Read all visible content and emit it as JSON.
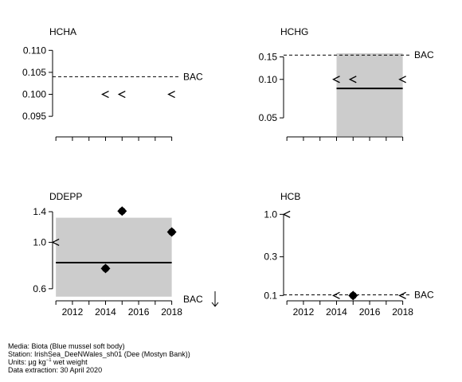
{
  "chart_data": [
    {
      "type": "scatter",
      "title": "HCHA",
      "scale": "linear",
      "ylim": [
        0.0905,
        0.1115
      ],
      "yticks": [
        0.095,
        0.1,
        0.105,
        0.11
      ],
      "ytick_labels": [
        "0.095",
        "0.100",
        "0.105",
        "0.110"
      ],
      "xlim": [
        2010.8,
        2018.5
      ],
      "xticks": [
        2011,
        2012,
        2013,
        2014,
        2015,
        2016,
        2017,
        2018
      ],
      "xtick_labels": [],
      "bac": {
        "value": 0.104,
        "label": "BAC"
      },
      "band": null,
      "trend": null,
      "points": [
        {
          "x": 2014,
          "y": 0.1,
          "marker": "less-than"
        },
        {
          "x": 2015,
          "y": 0.1,
          "marker": "less-than"
        },
        {
          "x": 2018,
          "y": 0.1,
          "marker": "less-than"
        }
      ]
    },
    {
      "type": "scatter",
      "title": "HCHG",
      "scale": "log",
      "ylim": [
        0.036,
        0.19
      ],
      "yticks": [
        0.05,
        0.1,
        0.15
      ],
      "ytick_labels": [
        "0.05",
        "0.10",
        "0.15"
      ],
      "xlim": [
        2010.8,
        2018.5
      ],
      "xticks": [
        2011,
        2012,
        2013,
        2014,
        2015,
        2016,
        2017,
        2018
      ],
      "xtick_labels": [],
      "bac": {
        "value": 0.155,
        "label": "BAC"
      },
      "band": {
        "x": [
          2014,
          2018
        ],
        "y": [
          0.035,
          0.16
        ]
      },
      "trend": {
        "x": [
          2014,
          2018
        ],
        "y": [
          0.085,
          0.085
        ]
      },
      "points": [
        {
          "x": 2014,
          "y": 0.1,
          "marker": "less-than"
        },
        {
          "x": 2015,
          "y": 0.1,
          "marker": "less-than"
        },
        {
          "x": 2018,
          "y": 0.1,
          "marker": "less-than"
        }
      ]
    },
    {
      "type": "scatter",
      "title": "DDEPP",
      "scale": "log",
      "ylim": [
        0.53,
        1.45
      ],
      "yticks": [
        0.6,
        1.0,
        1.4
      ],
      "ytick_labels": [
        "0.6",
        "1.0",
        "1.4"
      ],
      "xlim": [
        2010.8,
        2018.5
      ],
      "xticks": [
        2011,
        2012,
        2013,
        2014,
        2015,
        2016,
        2017,
        2018
      ],
      "xtick_labels": [
        "2012",
        "2014",
        "2016",
        "2018"
      ],
      "bac": {
        "value": null,
        "label": "BAC",
        "off_scale": "below"
      },
      "band": {
        "x": [
          2011,
          2018
        ],
        "y": [
          0.55,
          1.31
        ]
      },
      "trend": {
        "x": [
          2011,
          2018
        ],
        "y": [
          0.8,
          0.8
        ]
      },
      "points": [
        {
          "x": 2011,
          "y": 1.0,
          "marker": "less-than"
        },
        {
          "x": 2014,
          "y": 0.75,
          "marker": "filled-diamond"
        },
        {
          "x": 2015,
          "y": 1.41,
          "marker": "filled-diamond"
        },
        {
          "x": 2018,
          "y": 1.12,
          "marker": "filled-diamond"
        }
      ]
    },
    {
      "type": "scatter",
      "title": "HCB",
      "scale": "log",
      "ylim": [
        0.088,
        1.18
      ],
      "yticks": [
        0.1,
        0.3,
        1.0
      ],
      "ytick_labels": [
        "0.1",
        "0.3",
        "1.0"
      ],
      "xlim": [
        2010.8,
        2018.5
      ],
      "xticks": [
        2011,
        2012,
        2013,
        2014,
        2015,
        2016,
        2017,
        2018
      ],
      "xtick_labels": [
        "2012",
        "2014",
        "2016",
        "2018"
      ],
      "bac": {
        "value": 0.102,
        "label": "BAC"
      },
      "band": null,
      "trend": null,
      "points": [
        {
          "x": 2011,
          "y": 1.0,
          "marker": "less-than"
        },
        {
          "x": 2014,
          "y": 0.1,
          "marker": "less-than"
        },
        {
          "x": 2015,
          "y": 0.1,
          "marker": "filled-diamond"
        },
        {
          "x": 2018,
          "y": 0.1,
          "marker": "less-than"
        }
      ]
    }
  ],
  "footer": {
    "media": "Media: Biota (Blue mussel soft body)",
    "station": "Station: IrishSea_DeeNWales_sh01 (Dee (Mostyn Bank))",
    "units_prefix": "Units:  µg kg",
    "units_exp": "−1",
    "units_suffix": " wet weight",
    "extraction": "Data extraction: 30 April 2020"
  }
}
